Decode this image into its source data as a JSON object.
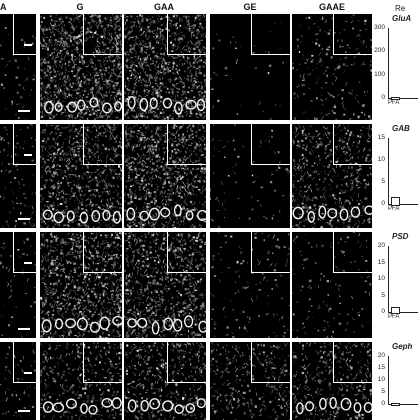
{
  "columns": [
    "A",
    "G",
    "GAA",
    "GE",
    "GAAE"
  ],
  "results_header": "Re",
  "plots": [
    {
      "title": "GluA",
      "ticks": [
        "300",
        "200",
        "100",
        "0"
      ],
      "xcat": "PFA",
      "ylim": [
        0,
        300
      ],
      "bar_fraction": 0.02
    },
    {
      "title": "GAB",
      "ticks": [
        "15",
        "10",
        "5",
        "0"
      ],
      "xcat": "PFA",
      "ylim": [
        0,
        15
      ],
      "bar_fraction": 0.1
    },
    {
      "title": "PSD",
      "ticks": [
        "20",
        "15",
        "10",
        "5",
        "0"
      ],
      "xcat": "PFA",
      "ylim": [
        0,
        20
      ],
      "bar_fraction": 0.07
    },
    {
      "title": "Geph",
      "ticks": [
        "20",
        "15",
        "10",
        "5",
        "0"
      ],
      "xcat": "",
      "ylim": [
        0,
        20
      ],
      "bar_fraction": 0
    }
  ]
}
